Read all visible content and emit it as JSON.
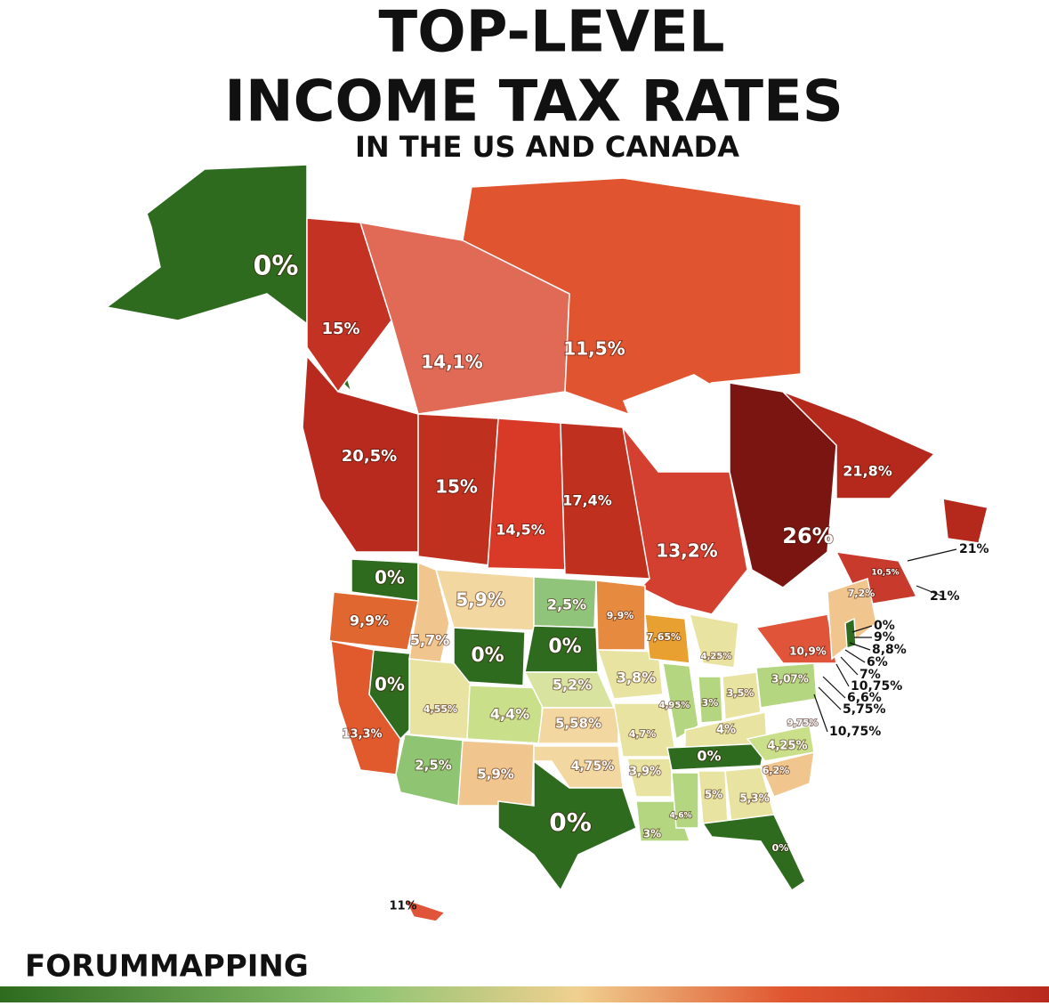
{
  "header": {
    "line1": "TOP-LEVEL",
    "line2": "INCOME TAX RATES",
    "subtitle": "IN THE US AND CANADA"
  },
  "labels": [
    "0%",
    "15%",
    "14,1%",
    "11,5%",
    "20,5%",
    "15%",
    "14,5%",
    "17,4%",
    "13,2%",
    "26%",
    "21,8%",
    "10,5%",
    "7,2%",
    "0%",
    "9,9%",
    "5,9%",
    "2,5%",
    "9,9%",
    "0%",
    "0%",
    "5,7%",
    "7,65%",
    "4,25%",
    "10,9%",
    "0%",
    "4,55%",
    "4,4%",
    "5,2%",
    "3,8%",
    "4,95%",
    "3%",
    "3,5%",
    "3,07%",
    "5,58%",
    "4,7%",
    "4%",
    "9,75%",
    "4,25%",
    "13,3%",
    "2,5%",
    "5,9%",
    "4,75%",
    "3,9%",
    "0%",
    "6,2%",
    "5%",
    "5,3%",
    "0%",
    "4,6%",
    "3%",
    "0%",
    "11%"
  ],
  "callouts": [
    "21%",
    "21%",
    "0%",
    "9%",
    "8,8%",
    "6%",
    "7%",
    "10,75%",
    "6,6%",
    "5,75%",
    "10,75%"
  ],
  "footer": "FORUMMAPPING"
}
